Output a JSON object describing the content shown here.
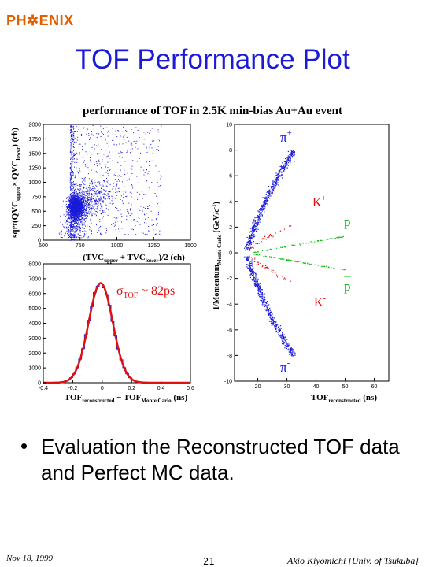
{
  "header": {
    "logo_text": "PH✲ENIX",
    "title": "TOF Performance Plot",
    "figure_title": "performance of TOF in 2.5K min-bias Au+Au event"
  },
  "chart_data": [
    {
      "type": "scatter",
      "description": "Charge vs time scatter",
      "x_ticks": [
        "500",
        "750",
        "1000",
        "1250",
        "1500"
      ],
      "y_ticks": [
        "0",
        "250",
        "500",
        "750",
        "1000",
        "1250",
        "1500",
        "1750",
        "2000"
      ],
      "xlim": [
        500,
        1500
      ],
      "ylim": [
        0,
        2000
      ],
      "xlabel": "(TVCupper + TVClower)/2 (ch)",
      "ylabel": "sqrt(QVCupper × QVClower) (ch)",
      "cluster_center": [
        720,
        580
      ],
      "color": "#1a1ad8"
    },
    {
      "type": "line",
      "description": "TOF resolution histogram with gaussian fit",
      "xlim": [
        -0.4,
        0.6
      ],
      "ylim": [
        0,
        8000
      ],
      "x_ticks": [
        "-0.4",
        "-0.2",
        "0",
        "0.2",
        "0.4",
        "0.6"
      ],
      "y_ticks": [
        "0",
        "1000",
        "2000",
        "3000",
        "4000",
        "5000",
        "6000",
        "7000",
        "8000"
      ],
      "xlabel": "TOFreconstructed − TOFMonte Carlo (ns)",
      "annotation": "σTOF ~ 82ps",
      "gaussian": {
        "mean": -0.01,
        "sigma": 0.082,
        "amplitude": 6700
      },
      "histogram_color": "#1a1ad8",
      "fit_color": "#e01010"
    },
    {
      "type": "scatter",
      "description": "1/momentum vs reconstructed TOF",
      "xlim": [
        12,
        65
      ],
      "ylim": [
        -10,
        10
      ],
      "x_ticks": [
        "20",
        "30",
        "40",
        "50",
        "60"
      ],
      "y_ticks": [
        "-10",
        "-8",
        "-6",
        "-4",
        "-2",
        "0",
        "2",
        "4",
        "6",
        "8",
        "10"
      ],
      "xlabel": "TOFreconstructed (ns)",
      "ylabel": "1/MomentumMonte Carlo (GeV/c)-1",
      "labels": {
        "pi_plus": "π+",
        "k_plus": "K+",
        "p": "p",
        "pbar": "p",
        "k_minus": "K-",
        "pi_minus": "π-"
      },
      "colors": {
        "pion": "#1a1ad8",
        "kaon": "#e01010",
        "proton": "#10c010",
        "label_pion": "#1a1ad8",
        "label_kaon": "#e01010",
        "label_proton": "#10b010"
      }
    }
  ],
  "bullet": {
    "symbol": "•",
    "text": "Evaluation the Reconstructed TOF data and Perfect MC data."
  },
  "footer": {
    "date": "Nov 18, 1999",
    "page": "21",
    "author": "Akio Kiyomichi [Univ. of Tsukuba]"
  }
}
